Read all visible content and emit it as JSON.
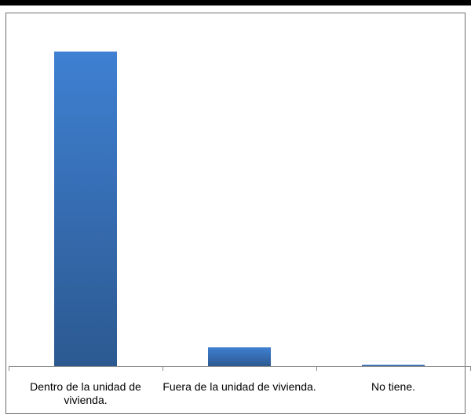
{
  "chart_data": {
    "type": "bar",
    "title": "",
    "xlabel": "",
    "ylabel": "",
    "categories": [
      "Dentro de la unidad de vivienda.",
      "Fuera de la unidad de vivienda.",
      "No tiene."
    ],
    "values": [
      94.0,
      5.6,
      0.4
    ],
    "ylim": [
      0,
      100
    ],
    "grid": false,
    "legend": "none",
    "bar_color_top": "#3f80d2",
    "bar_color_bottom": "#2c5990",
    "axis_color": "#8c8c8c"
  }
}
